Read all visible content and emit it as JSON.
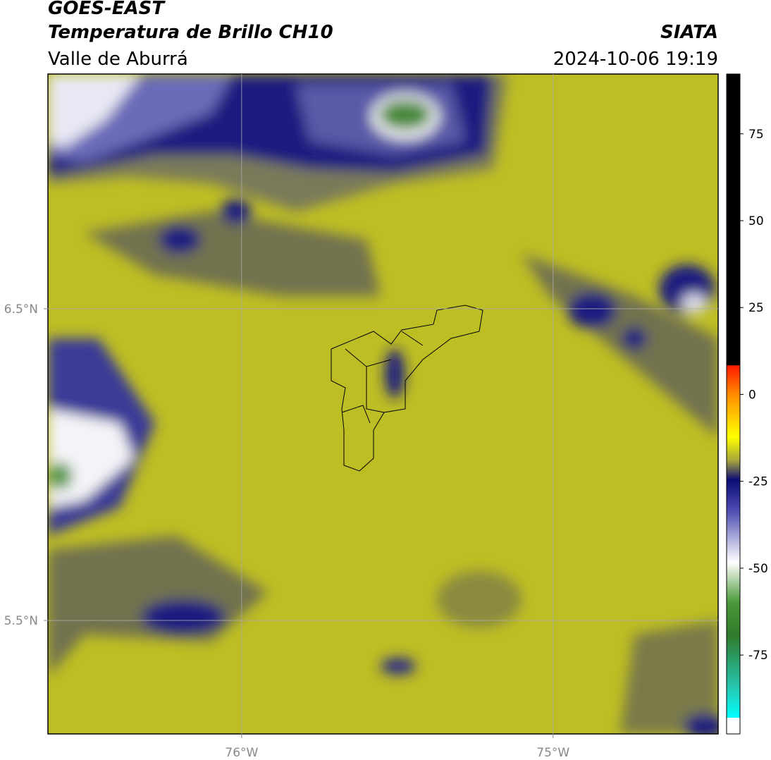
{
  "chart_data": {
    "type": "map",
    "title": "GOES-EAST",
    "subtitle": "Temperatura de Brillo CH10",
    "region": "Valle de Aburrá",
    "source": "SIATA",
    "datetime": "2024-10-06 19:19",
    "xlim": [
      -76.622,
      -74.47
    ],
    "ylim": [
      5.136,
      7.253
    ],
    "xticks": [
      {
        "value": -76,
        "label": "76°W"
      },
      {
        "value": -75,
        "label": "75°W"
      }
    ],
    "yticks": [
      {
        "value": 6.5,
        "label": "6.5°N"
      },
      {
        "value": 5.5,
        "label": "5.5°N"
      }
    ],
    "grid": true,
    "colorbar": {
      "lim": [
        -97.7,
        92.2
      ],
      "ticks": [
        75,
        50,
        25,
        0,
        -25,
        -50,
        -75
      ]
    }
  }
}
